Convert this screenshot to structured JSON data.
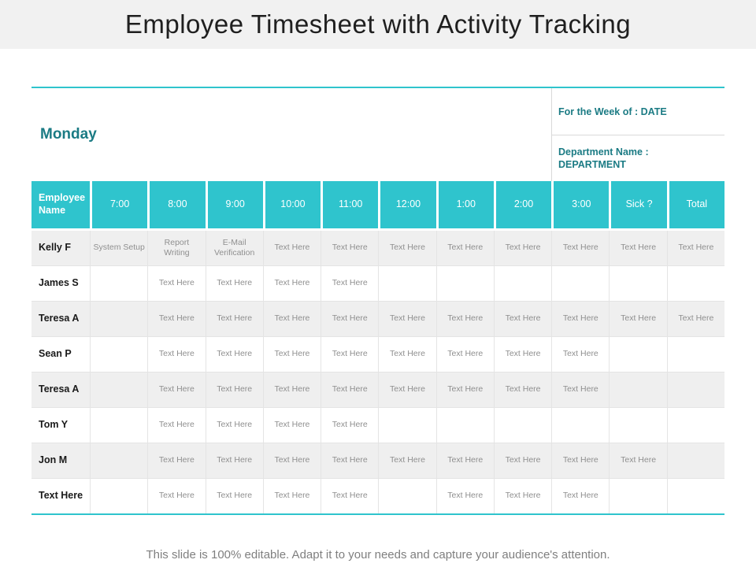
{
  "title": "Employee Timesheet with Activity Tracking",
  "schedule": {
    "day_label": "Monday",
    "week_of": "For the Week of : DATE",
    "department_line1": "Department Name :",
    "department_line2": "DEPARTMENT"
  },
  "table": {
    "columns": [
      "Employee Name",
      "7:00",
      "8:00",
      "9:00",
      "10:00",
      "11:00",
      "12:00",
      "1:00",
      "2:00",
      "3:00",
      "Sick ?",
      "Total"
    ],
    "rows": [
      {
        "name": "Kelly F",
        "cells": [
          "System Setup",
          "Report Writing",
          "E-Mail Verification",
          "Text Here",
          "Text Here",
          "Text Here",
          "Text Here",
          "Text Here",
          "Text Here",
          "Text Here",
          "Text Here"
        ]
      },
      {
        "name": "James S",
        "cells": [
          "",
          "Text Here",
          "Text Here",
          "Text Here",
          "Text Here",
          "",
          "",
          "",
          "",
          "",
          ""
        ]
      },
      {
        "name": "Teresa A",
        "cells": [
          "",
          "Text Here",
          "Text Here",
          "Text Here",
          "Text Here",
          "Text Here",
          "Text Here",
          "Text Here",
          "Text Here",
          "Text Here",
          "Text Here"
        ]
      },
      {
        "name": "Sean P",
        "cells": [
          "",
          "Text Here",
          "Text Here",
          "Text Here",
          "Text Here",
          "Text Here",
          "Text Here",
          "Text Here",
          "Text Here",
          "",
          ""
        ]
      },
      {
        "name": "Teresa A",
        "cells": [
          "",
          "Text Here",
          "Text Here",
          "Text Here",
          "Text Here",
          "Text Here",
          "Text Here",
          "Text Here",
          "Text Here",
          "",
          ""
        ]
      },
      {
        "name": "Tom Y",
        "cells": [
          "",
          "Text Here",
          "Text Here",
          "Text Here",
          "Text Here",
          "",
          "",
          "",
          "",
          "",
          ""
        ]
      },
      {
        "name": "Jon M",
        "cells": [
          "",
          "Text Here",
          "Text Here",
          "Text Here",
          "Text Here",
          "Text Here",
          "Text Here",
          "Text Here",
          "Text Here",
          "Text Here",
          ""
        ]
      },
      {
        "name": "Text Here",
        "cells": [
          "",
          "Text Here",
          "Text Here",
          "Text Here",
          "Text Here",
          "",
          "Text Here",
          "Text Here",
          "Text Here",
          "",
          ""
        ]
      }
    ]
  },
  "footer_note": "This slide is 100% editable. Adapt it to your needs and capture your audience's attention.",
  "colors": {
    "accent": "#2fc4cd",
    "accent_dark": "#1b7b84",
    "row_shade": "#efefef"
  }
}
